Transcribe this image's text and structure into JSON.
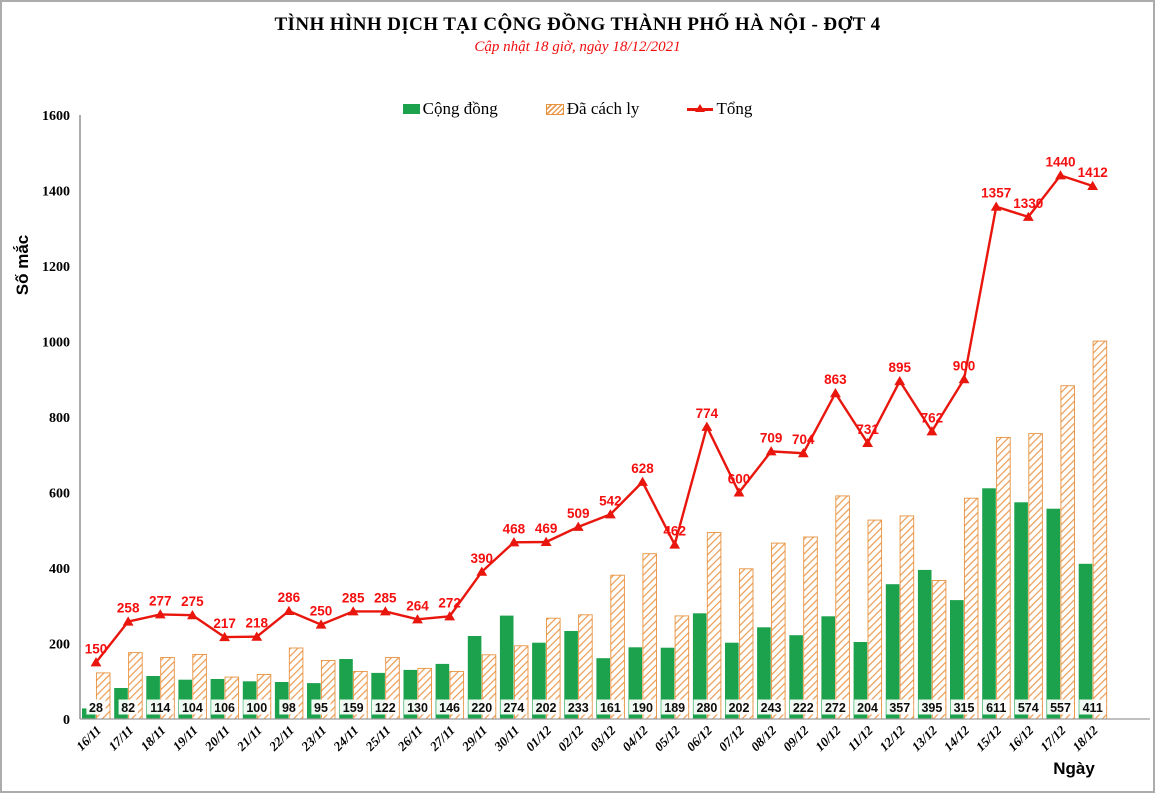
{
  "header": {
    "title": "TÌNH HÌNH DỊCH TẠI CỘNG ĐỒNG THÀNH PHỐ HÀ NỘI - ĐỢT 4",
    "subtitle": "Cập nhật 18 giờ, ngày 18/12/2021"
  },
  "axes": {
    "y_label": "Số mắc",
    "x_label": "Ngày",
    "y_ticks": [
      0,
      200,
      400,
      600,
      800,
      1000,
      1200,
      1400,
      1600
    ]
  },
  "colors": {
    "green": "#1ca24c",
    "orange": "#e8923e",
    "orange_stripe": "#ec9b51",
    "red_line": "#e8160d",
    "red_label": "#f50f0f",
    "axis": "#8c8c8c"
  },
  "chart_data": {
    "type": "bar+line",
    "title": "TÌNH HÌNH DỊCH TẠI CỘNG ĐỒNG THÀNH PHỐ HÀ NỘI - ĐỢT 4",
    "subtitle": "Cập nhật 18 giờ, ngày 18/12/2021",
    "xlabel": "Ngày",
    "ylabel": "Số mắc",
    "ylim": [
      0,
      1600
    ],
    "grid": false,
    "legend_position": "top",
    "categories": [
      "16/11",
      "17/11",
      "18/11",
      "19/11",
      "20/11",
      "21/11",
      "22/11",
      "23/11",
      "24/11",
      "25/11",
      "26/11",
      "27/11",
      "29/11",
      "30/11",
      "01/12",
      "02/12",
      "03/12",
      "04/12",
      "05/12",
      "06/12",
      "07/12",
      "08/12",
      "09/12",
      "10/12",
      "11/12",
      "12/12",
      "13/12",
      "14/12",
      "15/12",
      "16/12",
      "17/12",
      "18/12"
    ],
    "series": [
      {
        "name": "Cộng đồng",
        "type": "bar",
        "style": "solid",
        "color": "#1ca24c",
        "values": [
          28,
          82,
          114,
          104,
          106,
          100,
          98,
          95,
          159,
          122,
          130,
          146,
          220,
          274,
          202,
          233,
          161,
          190,
          189,
          280,
          202,
          243,
          222,
          272,
          204,
          357,
          395,
          315,
          611,
          574,
          557,
          411
        ]
      },
      {
        "name": "Đã cách ly",
        "type": "bar",
        "style": "hatched",
        "color": "#ec9b51",
        "values": [
          122,
          176,
          163,
          171,
          111,
          118,
          188,
          155,
          126,
          163,
          134,
          126,
          170,
          194,
          267,
          276,
          381,
          438,
          273,
          494,
          398,
          466,
          482,
          591,
          527,
          538,
          367,
          585,
          746,
          756,
          883,
          1001
        ]
      },
      {
        "name": "Tổng",
        "type": "line",
        "marker": "triangle",
        "color": "#e8160d",
        "values": [
          150,
          258,
          277,
          275,
          217,
          218,
          286,
          250,
          285,
          285,
          264,
          272,
          390,
          468,
          469,
          509,
          542,
          628,
          462,
          774,
          600,
          709,
          704,
          863,
          731,
          895,
          762,
          900,
          1357,
          1330,
          1440,
          1412
        ]
      }
    ]
  }
}
